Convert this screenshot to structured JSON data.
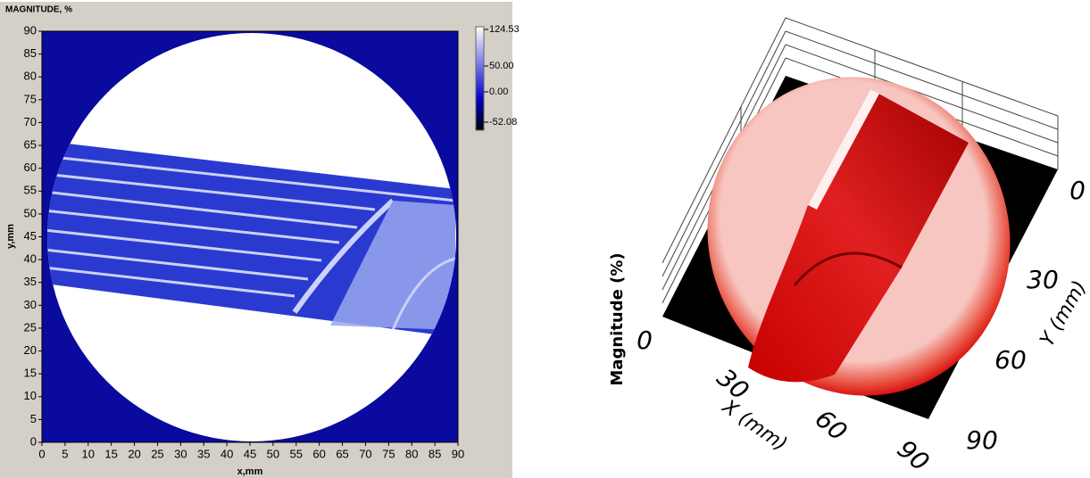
{
  "left_panel": {
    "title": "MAGNITUDE, %",
    "x_label": "x,mm",
    "y_label": "y,mm",
    "xticks": [
      0,
      5,
      10,
      15,
      20,
      25,
      30,
      35,
      40,
      45,
      50,
      55,
      60,
      65,
      70,
      75,
      80,
      85,
      90
    ],
    "yticks": [
      0,
      5,
      10,
      15,
      20,
      25,
      30,
      35,
      40,
      45,
      50,
      55,
      60,
      65,
      70,
      75,
      80,
      85,
      90
    ],
    "colorbar_labels": [
      "124.53",
      "50.00",
      "0.00",
      "-52.08"
    ]
  },
  "right_panel": {
    "z_label": "Magnitude (%)",
    "z_tick": "0",
    "x_label": "X (mm)",
    "y_label": "Y (mm)",
    "x_ticks": [
      "30",
      "60",
      "90"
    ],
    "y_ticks": [
      "0",
      "30",
      "60",
      "90"
    ]
  }
}
